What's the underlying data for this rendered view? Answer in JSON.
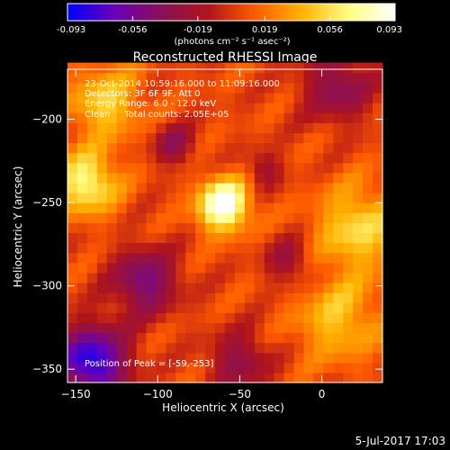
{
  "chart_data": {
    "type": "heatmap",
    "title": "Reconstructed RHESSI Image",
    "xlabel": "Heliocentric X (arcsec)",
    "ylabel": "Heliocentric Y (arcsec)",
    "xlim": [
      -155,
      37
    ],
    "ylim": [
      -358,
      -170
    ],
    "x_ticks": [
      -150,
      -100,
      -50,
      0
    ],
    "y_ticks": [
      -200,
      -250,
      -300,
      -350
    ],
    "colorbar": {
      "min": -0.093,
      "max": 0.093,
      "ticks": [
        "-0.093",
        "-0.056",
        "-0.019",
        "0.019",
        "0.056",
        "0.093"
      ],
      "unit_label": "(photons cm⁻² s⁻¹ asec⁻²)",
      "colormap": [
        "#0000ff",
        "#6a00b8",
        "#8a0f58",
        "#b0141a",
        "#ff5a00",
        "#ffb100",
        "#ffff80",
        "#ffffff"
      ]
    },
    "annotations": [
      "23-Oct-2014 10:59:16.000 to 11:09:16.000",
      "Detectors: 3F 6F 9F, Att 0",
      "Energy Range: 6.0 - 12.0 keV",
      "Clean     Total counts: 2.05E+05",
      "Position of Peak = [-59,-253]"
    ],
    "peak": {
      "x": -59,
      "y": -253
    },
    "sources": [
      {
        "x": -60,
        "y": -251,
        "amplitude": 0.093,
        "width": 11
      },
      {
        "x": -143,
        "y": -238,
        "amplitude": 0.064,
        "width": 13
      },
      {
        "x": -132,
        "y": -190,
        "amplitude": 0.045,
        "width": 15
      },
      {
        "x": 22,
        "y": -265,
        "amplitude": 0.048,
        "width": 18
      },
      {
        "x": 10,
        "y": -320,
        "amplitude": 0.04,
        "width": 18
      },
      {
        "x": -140,
        "y": -345,
        "amplitude": -0.093,
        "width": 15
      },
      {
        "x": -108,
        "y": -297,
        "amplitude": -0.058,
        "width": 14
      },
      {
        "x": -90,
        "y": -215,
        "amplitude": -0.04,
        "width": 9
      },
      {
        "x": -35,
        "y": -230,
        "amplitude": -0.03,
        "width": 8
      },
      {
        "x": -20,
        "y": -285,
        "amplitude": -0.035,
        "width": 10
      },
      {
        "x": -50,
        "y": -345,
        "amplitude": -0.04,
        "width": 13
      },
      {
        "x": 10,
        "y": -180,
        "amplitude": -0.045,
        "width": 15
      }
    ]
  },
  "footer": {
    "timestamp": "5-Jul-2017 17:03"
  }
}
